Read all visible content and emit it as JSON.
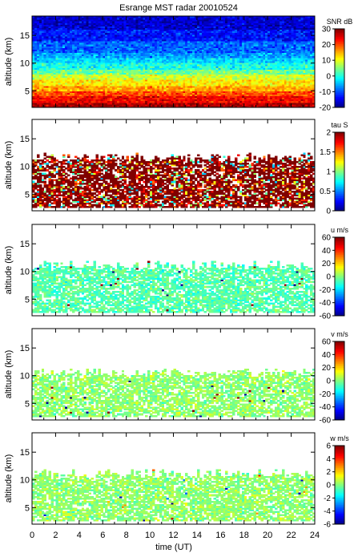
{
  "figure": {
    "title": "Esrange MST radar 20010524",
    "xlabel": "time (UT)",
    "ylabel": "altitude (km)"
  },
  "chart_data": [
    {
      "type": "heatmap",
      "panel": "snr",
      "colorbar_label": "SNR dB",
      "colorbar_ticks": [
        -20,
        -10,
        0,
        10,
        20,
        30
      ],
      "clim": [
        -20,
        30
      ],
      "xlim": [
        0,
        24
      ],
      "ylim": [
        2,
        18.5
      ],
      "xticks": [
        0,
        2,
        4,
        6,
        8,
        10,
        12,
        14,
        16,
        18,
        20,
        22,
        24
      ],
      "yticks": [
        5,
        10,
        15
      ],
      "colormap": "jet",
      "profile_bands": [
        {
          "altitude_range": [
            2,
            3
          ],
          "value": 28
        },
        {
          "altitude_range": [
            3,
            4
          ],
          "value": 24
        },
        {
          "altitude_range": [
            4,
            5
          ],
          "value": 20
        },
        {
          "altitude_range": [
            5,
            6
          ],
          "value": 16
        },
        {
          "altitude_range": [
            6,
            7
          ],
          "value": 12
        },
        {
          "altitude_range": [
            7,
            8
          ],
          "value": 9
        },
        {
          "altitude_range": [
            8,
            9
          ],
          "value": 4
        },
        {
          "altitude_range": [
            9,
            10
          ],
          "value": 0
        },
        {
          "altitude_range": [
            10,
            11
          ],
          "value": -3
        },
        {
          "altitude_range": [
            11,
            12
          ],
          "value": -6
        },
        {
          "altitude_range": [
            12,
            14
          ],
          "value": -9
        },
        {
          "altitude_range": [
            14,
            16
          ],
          "value": -13
        },
        {
          "altitude_range": [
            16,
            18.5
          ],
          "value": -16
        }
      ]
    },
    {
      "type": "heatmap",
      "panel": "tau",
      "colorbar_label": "tau S",
      "colorbar_ticks": [
        0,
        0.5,
        1,
        1.5,
        2
      ],
      "clim": [
        0,
        2
      ],
      "xlim": [
        0,
        24
      ],
      "ylim": [
        2,
        18.5
      ],
      "xticks": [
        0,
        2,
        4,
        6,
        8,
        10,
        12,
        14,
        16,
        18,
        20,
        22,
        24
      ],
      "yticks": [
        5,
        10,
        15
      ],
      "colormap": "jet",
      "data_extent_km": [
        2.5,
        11.5
      ],
      "typical_value": 2.0,
      "secondary_value": 1.5
    },
    {
      "type": "heatmap",
      "panel": "u",
      "colorbar_label": "u m/s",
      "colorbar_ticks": [
        -60,
        -40,
        -20,
        0,
        20,
        40,
        60
      ],
      "clim": [
        -60,
        60
      ],
      "xlim": [
        0,
        24
      ],
      "ylim": [
        2,
        18.5
      ],
      "xticks": [
        0,
        2,
        4,
        6,
        8,
        10,
        12,
        14,
        16,
        18,
        20,
        22,
        24
      ],
      "yticks": [
        5,
        10,
        15
      ],
      "colormap": "jet",
      "data_extent_km": [
        2.5,
        11.0
      ],
      "typical_value": -5
    },
    {
      "type": "heatmap",
      "panel": "v",
      "colorbar_label": "v m/s",
      "colorbar_ticks": [
        -60,
        -40,
        -20,
        0,
        20,
        40,
        60
      ],
      "clim": [
        -60,
        60
      ],
      "xlim": [
        0,
        24
      ],
      "ylim": [
        2,
        18.5
      ],
      "xticks": [
        0,
        2,
        4,
        6,
        8,
        10,
        12,
        14,
        16,
        18,
        20,
        22,
        24
      ],
      "yticks": [
        5,
        10,
        15
      ],
      "colormap": "jet",
      "data_extent_km": [
        2.5,
        10.5
      ],
      "typical_value": 2
    },
    {
      "type": "heatmap",
      "panel": "w",
      "colorbar_label": "w m/s",
      "colorbar_ticks": [
        -6,
        -4,
        -2,
        0,
        2,
        4,
        6
      ],
      "clim": [
        -6,
        6
      ],
      "xlim": [
        0,
        24
      ],
      "ylim": [
        2,
        18.5
      ],
      "xticks": [
        0,
        2,
        4,
        6,
        8,
        10,
        12,
        14,
        16,
        18,
        20,
        22,
        24
      ],
      "yticks": [
        5,
        10,
        15
      ],
      "colormap": "jet",
      "data_extent_km": [
        2.5,
        11.0
      ],
      "typical_value": 0.2
    }
  ]
}
